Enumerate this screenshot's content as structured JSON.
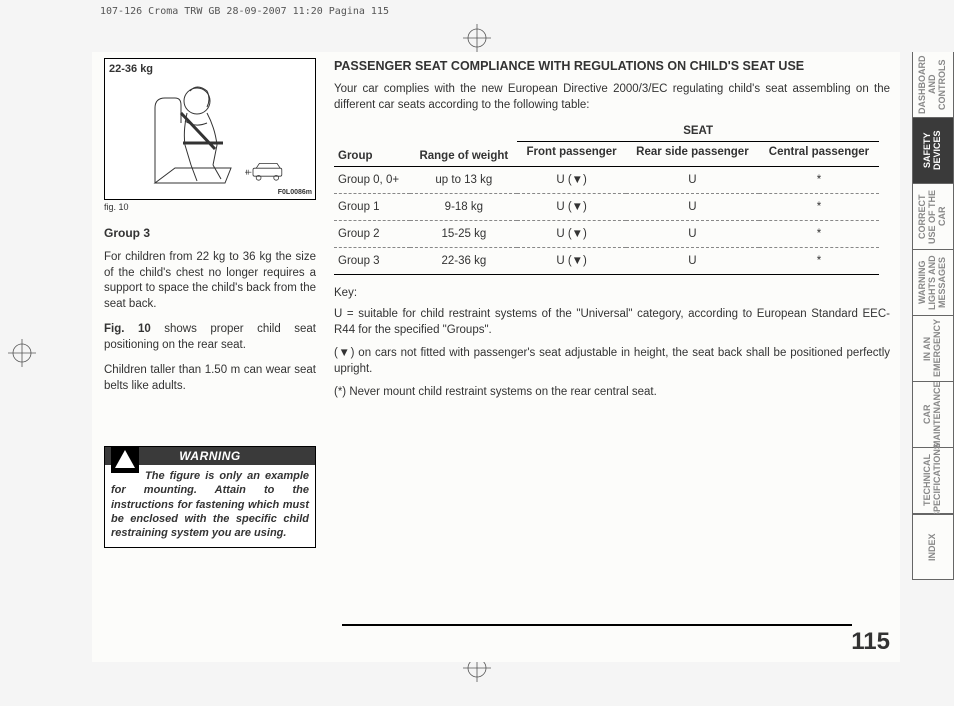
{
  "print_header": "107-126 Croma TRW GB  28-09-2007  11:20  Pagina 115",
  "page_number": "115",
  "figure": {
    "badge": "22-36 kg",
    "code": "F0L0086m",
    "caption": "fig. 10"
  },
  "left_column": {
    "group_title": "Group 3",
    "para1": "For children from 22 kg to 36 kg the size of the child's chest no longer requires a support to space the child's back from the seat back.",
    "para2_prefix": "Fig. 10",
    "para2_rest": " shows proper child seat positioning on the rear seat.",
    "para3": "Children taller than 1.50 m can wear seat belts like adults."
  },
  "warning": {
    "title": "WARNING",
    "body": "The figure is only an example for mounting. Attain to the instructions for fastening which must be enclosed with the specific child restraining system you are using."
  },
  "right_column": {
    "title": "PASSENGER SEAT COMPLIANCE WITH REGULATIONS ON CHILD'S SEAT USE",
    "intro": "Your car complies with the new European Directive 2000/3/EC regulating child's seat assembling on the different car seats according to the following table:",
    "table": {
      "super_seat": "SEAT",
      "headers": {
        "group": "Group",
        "weight": "Range of weight",
        "front": "Front passenger",
        "rear_side": "Rear side passenger",
        "central": "Central passenger"
      },
      "rows": [
        {
          "group": "Group 0, 0+",
          "weight": "up to 13 kg",
          "front": "U (▼)",
          "rear": "U",
          "central": "*"
        },
        {
          "group": "Group 1",
          "weight": "9-18 kg",
          "front": "U (▼)",
          "rear": "U",
          "central": "*"
        },
        {
          "group": "Group 2",
          "weight": "15-25 kg",
          "front": "U (▼)",
          "rear": "U",
          "central": "*"
        },
        {
          "group": "Group 3",
          "weight": "22-36 kg",
          "front": "U (▼)",
          "rear": "U",
          "central": "*"
        }
      ]
    },
    "key_label": "Key:",
    "key_u": "U = suitable for child restraint systems of the \"Universal\" category, according to European Standard EEC-R44 for the specified \"Groups\".",
    "key_tri": "(▼) on cars not fitted with passenger's seat adjustable in height, the seat back shall be positioned perfectly upright.",
    "key_star": "(*) Never mount child restraint systems on the rear central seat."
  },
  "tabs": [
    {
      "label": "DASHBOARD AND CONTROLS",
      "active": false
    },
    {
      "label": "SAFETY DEVICES",
      "active": true
    },
    {
      "label": "CORRECT USE OF THE CAR",
      "active": false
    },
    {
      "label": "WARNING LIGHTS AND MESSAGES",
      "active": false
    },
    {
      "label": "IN AN EMERGENCY",
      "active": false
    },
    {
      "label": "CAR MAINTENANCE",
      "active": false
    },
    {
      "label": "TECHNICAL SPECIFICATIONS",
      "active": false
    },
    {
      "label": "INDEX",
      "active": false
    }
  ],
  "colors": {
    "page_bg": "#fcfcfa",
    "tab_active_bg": "#3a3a3a",
    "tab_inactive_fg": "#888888"
  }
}
